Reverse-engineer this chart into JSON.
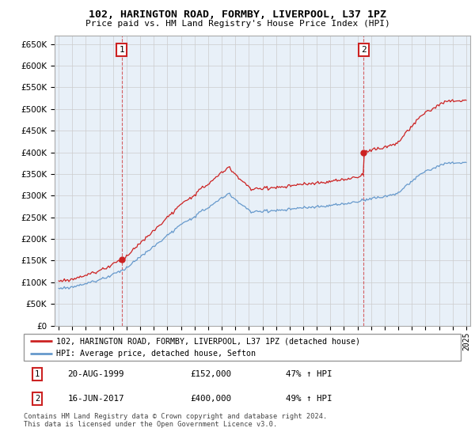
{
  "title": "102, HARINGTON ROAD, FORMBY, LIVERPOOL, L37 1PZ",
  "subtitle": "Price paid vs. HM Land Registry's House Price Index (HPI)",
  "hpi_label": "HPI: Average price, detached house, Sefton",
  "property_label": "102, HARINGTON ROAD, FORMBY, LIVERPOOL, L37 1PZ (detached house)",
  "footer": "Contains HM Land Registry data © Crown copyright and database right 2024.\nThis data is licensed under the Open Government Licence v3.0.",
  "sale1_label": "20-AUG-1999",
  "sale1_price": "£152,000",
  "sale1_hpi": "47% ↑ HPI",
  "sale2_label": "16-JUN-2017",
  "sale2_price": "£400,000",
  "sale2_hpi": "49% ↑ HPI",
  "sale1_date_num": 1999.64,
  "sale1_value": 152000,
  "sale2_date_num": 2017.46,
  "sale2_value": 400000,
  "ylim_min": 0,
  "ylim_max": 670000,
  "yticks": [
    0,
    50000,
    100000,
    150000,
    200000,
    250000,
    300000,
    350000,
    400000,
    450000,
    500000,
    550000,
    600000,
    650000
  ],
  "hpi_color": "#6699CC",
  "property_color": "#CC2222",
  "bg_fill_color": "#E8F0F8",
  "background_color": "#ffffff",
  "grid_color": "#cccccc"
}
